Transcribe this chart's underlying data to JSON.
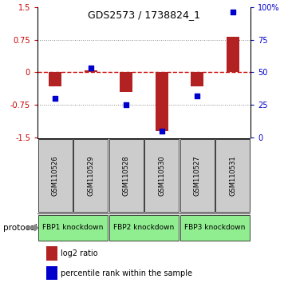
{
  "title": "GDS2573 / 1738824_1",
  "samples": [
    "GSM110526",
    "GSM110529",
    "GSM110528",
    "GSM110530",
    "GSM110527",
    "GSM110531"
  ],
  "log2_ratio": [
    -0.32,
    0.04,
    -0.45,
    -1.35,
    -0.32,
    0.82
  ],
  "percentile_rank": [
    30,
    53,
    25,
    5,
    32,
    96
  ],
  "bar_color": "#B22222",
  "dot_color": "#0000CD",
  "zero_line_color": "#CC0000",
  "yticks_left": [
    -1.5,
    -0.75,
    0,
    0.75,
    1.5
  ],
  "yticks_right": [
    0,
    25,
    50,
    75,
    100
  ],
  "ylim": [
    -1.5,
    1.5
  ],
  "protocols": [
    {
      "label": "FBP1 knockdown",
      "samples": [
        0,
        1
      ],
      "color": "#90EE90"
    },
    {
      "label": "FBP2 knockdown",
      "samples": [
        2,
        3
      ],
      "color": "#90EE90"
    },
    {
      "label": "FBP3 knockdown",
      "samples": [
        4,
        5
      ],
      "color": "#90EE90"
    }
  ],
  "protocol_label": "protocol",
  "legend_items": [
    {
      "color": "#B22222",
      "label": "log2 ratio"
    },
    {
      "color": "#0000CD",
      "label": "percentile rank within the sample"
    }
  ],
  "dotted_line_color": "#888888",
  "bg_color": "#FFFFFF",
  "sample_box_color": "#CCCCCC",
  "bar_width": 0.35
}
